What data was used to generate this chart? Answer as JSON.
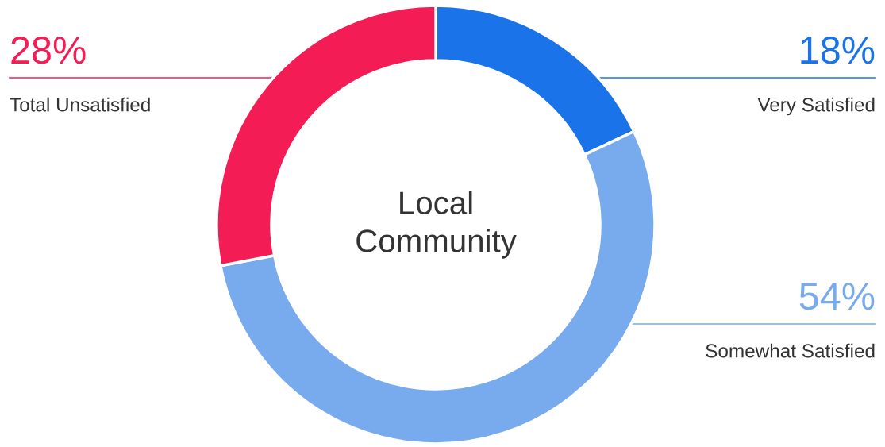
{
  "chart_data": {
    "type": "donut",
    "title": "Local\nCommunity",
    "categories": [
      "Very Satisfied",
      "Somewhat Satisfied",
      "Total Unsatisfied"
    ],
    "values": [
      18,
      54,
      28
    ],
    "colors": [
      "#1a73e8",
      "#78aaee",
      "#f41c54"
    ],
    "value_labels": [
      "18%",
      "54%",
      "28%"
    ]
  }
}
